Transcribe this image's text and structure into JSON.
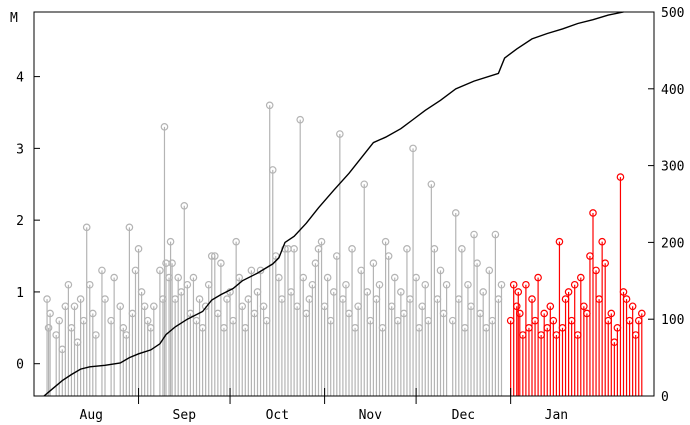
{
  "chart_data": {
    "type": "stem+line",
    "title": "",
    "xlabel": "",
    "ylabel_left": "M",
    "ylabel_right": "",
    "grid": false,
    "legend": "none",
    "x_range_days": [
      0,
      200
    ],
    "ylim_left": [
      -0.45,
      4.9
    ],
    "ylim_right": [
      0,
      500
    ],
    "left_ticks": [
      0,
      1,
      2,
      3,
      4
    ],
    "right_ticks": [
      0,
      100,
      200,
      300,
      400,
      500
    ],
    "months": [
      {
        "label": "Aug",
        "start": 0
      },
      {
        "label": "Sep",
        "start": 31
      },
      {
        "label": "Oct",
        "start": 61
      },
      {
        "label": "Nov",
        "start": 92
      },
      {
        "label": "Dec",
        "start": 122
      },
      {
        "label": "Jan",
        "start": 153
      }
    ],
    "recent_start_day": 153,
    "colors": {
      "older_events": "#b4b4b4",
      "recent_events": "#ff0000",
      "cumulative_line": "#000000",
      "axis": "#000000"
    },
    "cumulative_count": [
      [
        0,
        0
      ],
      [
        3,
        10
      ],
      [
        6,
        20
      ],
      [
        9,
        28
      ],
      [
        12,
        35
      ],
      [
        15,
        38
      ],
      [
        20,
        40
      ],
      [
        25,
        43
      ],
      [
        28,
        50
      ],
      [
        31,
        55
      ],
      [
        35,
        60
      ],
      [
        38,
        68
      ],
      [
        40,
        80
      ],
      [
        43,
        90
      ],
      [
        47,
        100
      ],
      [
        52,
        110
      ],
      [
        55,
        125
      ],
      [
        58,
        132
      ],
      [
        62,
        140
      ],
      [
        65,
        150
      ],
      [
        70,
        160
      ],
      [
        75,
        172
      ],
      [
        77,
        180
      ],
      [
        79,
        200
      ],
      [
        82,
        208
      ],
      [
        86,
        225
      ],
      [
        90,
        245
      ],
      [
        95,
        268
      ],
      [
        100,
        290
      ],
      [
        104,
        310
      ],
      [
        108,
        330
      ],
      [
        112,
        337
      ],
      [
        117,
        348
      ],
      [
        121,
        360
      ],
      [
        125,
        372
      ],
      [
        130,
        385
      ],
      [
        135,
        400
      ],
      [
        141,
        410
      ],
      [
        149,
        420
      ],
      [
        151,
        440
      ],
      [
        155,
        452
      ],
      [
        160,
        465
      ],
      [
        165,
        472
      ],
      [
        170,
        478
      ],
      [
        175,
        485
      ],
      [
        180,
        490
      ],
      [
        185,
        496
      ],
      [
        190,
        500
      ]
    ],
    "events": [
      [
        1,
        0.9
      ],
      [
        1.5,
        0.5
      ],
      [
        2,
        0.7
      ],
      [
        4,
        0.4
      ],
      [
        5,
        0.6
      ],
      [
        6,
        0.2
      ],
      [
        7,
        0.8
      ],
      [
        8,
        1.1
      ],
      [
        9,
        0.5
      ],
      [
        10,
        0.8
      ],
      [
        11,
        0.3
      ],
      [
        12,
        0.9
      ],
      [
        13,
        0.6
      ],
      [
        14,
        1.9
      ],
      [
        15,
        1.1
      ],
      [
        16,
        0.7
      ],
      [
        17,
        0.4
      ],
      [
        19,
        1.3
      ],
      [
        20,
        0.9
      ],
      [
        22,
        0.6
      ],
      [
        23,
        1.2
      ],
      [
        25,
        0.8
      ],
      [
        26,
        0.5
      ],
      [
        27,
        0.4
      ],
      [
        28,
        1.9
      ],
      [
        29,
        0.7
      ],
      [
        30,
        1.3
      ],
      [
        31,
        1.6
      ],
      [
        32,
        1.0
      ],
      [
        33,
        0.8
      ],
      [
        34,
        0.6
      ],
      [
        35,
        0.5
      ],
      [
        36,
        0.8
      ],
      [
        38,
        1.3
      ],
      [
        39,
        0.9
      ],
      [
        39.5,
        3.3
      ],
      [
        40,
        1.4
      ],
      [
        41,
        1.2
      ],
      [
        41.5,
        1.7
      ],
      [
        42,
        1.4
      ],
      [
        43,
        0.9
      ],
      [
        44,
        1.2
      ],
      [
        45,
        1.0
      ],
      [
        46,
        2.2
      ],
      [
        47,
        1.1
      ],
      [
        48,
        0.7
      ],
      [
        49,
        1.2
      ],
      [
        50,
        0.6
      ],
      [
        51,
        0.9
      ],
      [
        52,
        0.5
      ],
      [
        53,
        0.8
      ],
      [
        54,
        1.1
      ],
      [
        55,
        1.5
      ],
      [
        56,
        1.5
      ],
      [
        57,
        0.7
      ],
      [
        58,
        1.4
      ],
      [
        59,
        0.5
      ],
      [
        60,
        0.9
      ],
      [
        61,
        1.0
      ],
      [
        62,
        0.6
      ],
      [
        63,
        1.7
      ],
      [
        64,
        1.2
      ],
      [
        65,
        0.8
      ],
      [
        66,
        0.5
      ],
      [
        67,
        0.9
      ],
      [
        68,
        1.3
      ],
      [
        69,
        0.7
      ],
      [
        70,
        1.0
      ],
      [
        71,
        1.3
      ],
      [
        72,
        0.8
      ],
      [
        73,
        0.6
      ],
      [
        74,
        3.6
      ],
      [
        75,
        2.7
      ],
      [
        76,
        1.5
      ],
      [
        77,
        1.2
      ],
      [
        78,
        0.9
      ],
      [
        79,
        1.6
      ],
      [
        80,
        1.6
      ],
      [
        81,
        1.0
      ],
      [
        82,
        1.6
      ],
      [
        83,
        0.8
      ],
      [
        84,
        3.4
      ],
      [
        85,
        1.2
      ],
      [
        86,
        0.7
      ],
      [
        87,
        0.9
      ],
      [
        88,
        1.1
      ],
      [
        89,
        1.4
      ],
      [
        90,
        1.6
      ],
      [
        91,
        1.7
      ],
      [
        92,
        0.8
      ],
      [
        93,
        1.2
      ],
      [
        94,
        0.6
      ],
      [
        95,
        1.0
      ],
      [
        96,
        1.5
      ],
      [
        97,
        3.2
      ],
      [
        98,
        0.9
      ],
      [
        99,
        1.1
      ],
      [
        100,
        0.7
      ],
      [
        101,
        1.6
      ],
      [
        102,
        0.5
      ],
      [
        103,
        0.8
      ],
      [
        104,
        1.3
      ],
      [
        105,
        2.5
      ],
      [
        106,
        1.0
      ],
      [
        107,
        0.6
      ],
      [
        108,
        1.4
      ],
      [
        109,
        0.9
      ],
      [
        110,
        1.1
      ],
      [
        111,
        0.5
      ],
      [
        112,
        1.7
      ],
      [
        113,
        1.5
      ],
      [
        114,
        0.8
      ],
      [
        115,
        1.2
      ],
      [
        116,
        0.6
      ],
      [
        117,
        1.0
      ],
      [
        118,
        0.7
      ],
      [
        119,
        1.6
      ],
      [
        120,
        0.9
      ],
      [
        121,
        3.0
      ],
      [
        122,
        1.2
      ],
      [
        123,
        0.5
      ],
      [
        124,
        0.8
      ],
      [
        125,
        1.1
      ],
      [
        126,
        0.6
      ],
      [
        127,
        2.5
      ],
      [
        128,
        1.6
      ],
      [
        129,
        0.9
      ],
      [
        130,
        1.3
      ],
      [
        131,
        0.7
      ],
      [
        132,
        1.1
      ],
      [
        134,
        0.6
      ],
      [
        135,
        2.1
      ],
      [
        136,
        0.9
      ],
      [
        137,
        1.6
      ],
      [
        138,
        0.5
      ],
      [
        139,
        1.1
      ],
      [
        140,
        0.8
      ],
      [
        141,
        1.8
      ],
      [
        142,
        1.4
      ],
      [
        143,
        0.7
      ],
      [
        144,
        1.0
      ],
      [
        145,
        0.5
      ],
      [
        146,
        1.3
      ],
      [
        147,
        0.6
      ],
      [
        148,
        1.8
      ],
      [
        149,
        0.9
      ],
      [
        150,
        1.1
      ],
      [
        153,
        0.6
      ],
      [
        154,
        1.1
      ],
      [
        155,
        0.8
      ],
      [
        155.5,
        1.0
      ],
      [
        156,
        0.7
      ],
      [
        157,
        0.4
      ],
      [
        158,
        1.1
      ],
      [
        159,
        0.5
      ],
      [
        160,
        0.9
      ],
      [
        161,
        0.6
      ],
      [
        162,
        1.2
      ],
      [
        163,
        0.4
      ],
      [
        164,
        0.7
      ],
      [
        165,
        0.5
      ],
      [
        166,
        0.8
      ],
      [
        167,
        0.6
      ],
      [
        168,
        0.4
      ],
      [
        169,
        1.7
      ],
      [
        170,
        0.5
      ],
      [
        171,
        0.9
      ],
      [
        172,
        1.0
      ],
      [
        173,
        0.6
      ],
      [
        174,
        1.1
      ],
      [
        175,
        0.4
      ],
      [
        176,
        1.2
      ],
      [
        177,
        0.8
      ],
      [
        178,
        0.7
      ],
      [
        179,
        1.5
      ],
      [
        180,
        2.1
      ],
      [
        181,
        1.3
      ],
      [
        182,
        0.9
      ],
      [
        183,
        1.7
      ],
      [
        184,
        1.4
      ],
      [
        185,
        0.6
      ],
      [
        186,
        0.7
      ],
      [
        187,
        0.3
      ],
      [
        188,
        0.5
      ],
      [
        189,
        2.6
      ],
      [
        190,
        1.0
      ],
      [
        191,
        0.9
      ],
      [
        192,
        0.6
      ],
      [
        193,
        0.8
      ],
      [
        194,
        0.4
      ],
      [
        195,
        0.6
      ],
      [
        196,
        0.7
      ]
    ]
  }
}
